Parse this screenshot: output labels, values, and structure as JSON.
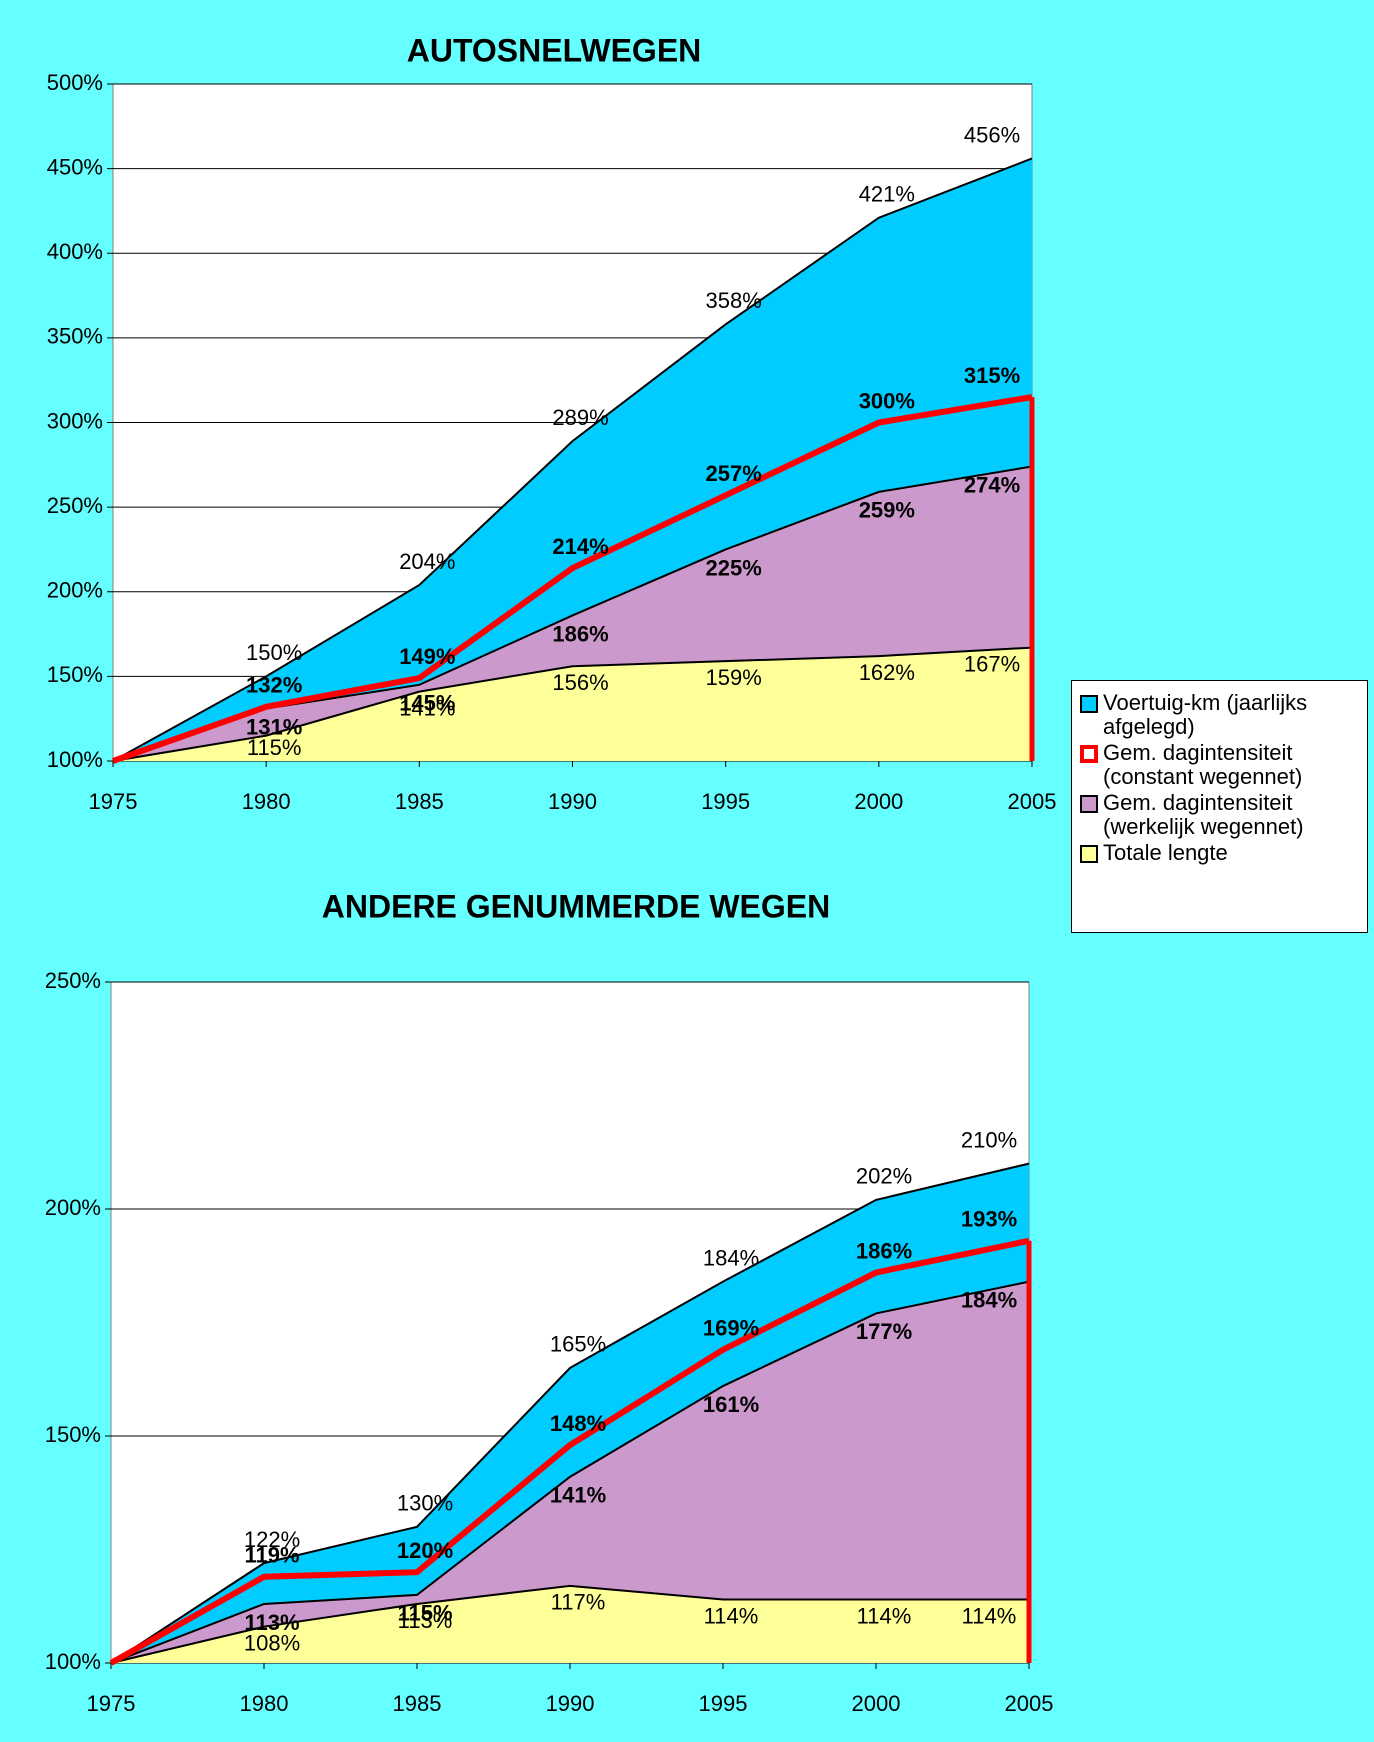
{
  "chart_data": [
    {
      "type": "area",
      "title": "AUTOSNELWEGEN",
      "x": [
        1975,
        1980,
        1985,
        1990,
        1995,
        2000,
        2005
      ],
      "xlim": [
        1975,
        2005
      ],
      "xticks": [
        1975,
        1980,
        1985,
        1990,
        1995,
        2000,
        2005
      ],
      "ylim": [
        100,
        500
      ],
      "yticks": [
        {
          "value": 100,
          "label": "100%"
        },
        {
          "value": 150,
          "label": "150%"
        },
        {
          "value": 200,
          "label": "200%"
        },
        {
          "value": 250,
          "label": "250%"
        },
        {
          "value": 300,
          "label": "300%"
        },
        {
          "value": 350,
          "label": "350%"
        },
        {
          "value": 400,
          "label": "400%"
        },
        {
          "value": 450,
          "label": "450%"
        },
        {
          "value": 500,
          "label": "500%"
        }
      ],
      "grid": true,
      "series": [
        {
          "name": "Voertuig-km (jaarlijks afgelegd)",
          "kind": "area",
          "color": "#00ccff",
          "values": [
            100,
            150,
            204,
            289,
            358,
            421,
            456
          ],
          "value_labels": [
            null,
            "150%",
            "204%",
            "289%",
            "358%",
            "421%",
            "456%"
          ]
        },
        {
          "name": "Gem. dagintensiteit (constant wegennet)",
          "kind": "line",
          "color": "#ff0000",
          "values": [
            100,
            132,
            149,
            214,
            257,
            300,
            315
          ],
          "value_labels": [
            null,
            "132%",
            "149%",
            "214%",
            "257%",
            "300%",
            "315%"
          ]
        },
        {
          "name": "Gem. dagintensiteit (werkelijk wegennet)",
          "kind": "area",
          "color": "#cc99cc",
          "values": [
            100,
            131,
            145,
            186,
            225,
            259,
            274
          ],
          "value_labels": [
            null,
            "131%",
            "145%",
            "186%",
            "225%",
            "259%",
            "274%"
          ]
        },
        {
          "name": "Totale lengte",
          "kind": "area",
          "color": "#ffff99",
          "values": [
            100,
            115,
            141,
            156,
            159,
            162,
            167
          ],
          "value_labels": [
            null,
            "115%",
            "141%",
            "156%",
            "159%",
            "162%",
            "167%"
          ]
        }
      ]
    },
    {
      "type": "area",
      "title": "ANDERE GENUMMERDE WEGEN",
      "x": [
        1975,
        1980,
        1985,
        1990,
        1995,
        2000,
        2005
      ],
      "xlim": [
        1975,
        2005
      ],
      "xticks": [
        1975,
        1980,
        1985,
        1990,
        1995,
        2000,
        2005
      ],
      "ylim": [
        100,
        250
      ],
      "yticks": [
        {
          "value": 100,
          "label": "100%"
        },
        {
          "value": 150,
          "label": "150%"
        },
        {
          "value": 200,
          "label": "200%"
        },
        {
          "value": 250,
          "label": "250%"
        }
      ],
      "grid": true,
      "series": [
        {
          "kind": "area",
          "color": "#00ccff",
          "values": [
            100,
            122,
            130,
            165,
            184,
            202,
            210
          ],
          "value_labels": [
            null,
            "122%",
            "130%",
            "165%",
            "184%",
            "202%",
            "210%"
          ]
        },
        {
          "kind": "line",
          "color": "#ff0000",
          "values": [
            100,
            119,
            120,
            148,
            169,
            186,
            193
          ],
          "value_labels": [
            null,
            "119%",
            "120%",
            "148%",
            "169%",
            "186%",
            "193%"
          ]
        },
        {
          "kind": "area",
          "color": "#cc99cc",
          "values": [
            100,
            113,
            115,
            141,
            161,
            177,
            184
          ],
          "value_labels": [
            null,
            "113%",
            "115%",
            "141%",
            "161%",
            "177%",
            "184%"
          ]
        },
        {
          "kind": "area",
          "color": "#ffff99",
          "values": [
            100,
            108,
            113,
            117,
            114,
            114,
            114
          ],
          "value_labels": [
            null,
            "108%",
            "113%",
            "117%",
            "114%",
            "114%",
            "114%"
          ]
        }
      ]
    }
  ]
}
